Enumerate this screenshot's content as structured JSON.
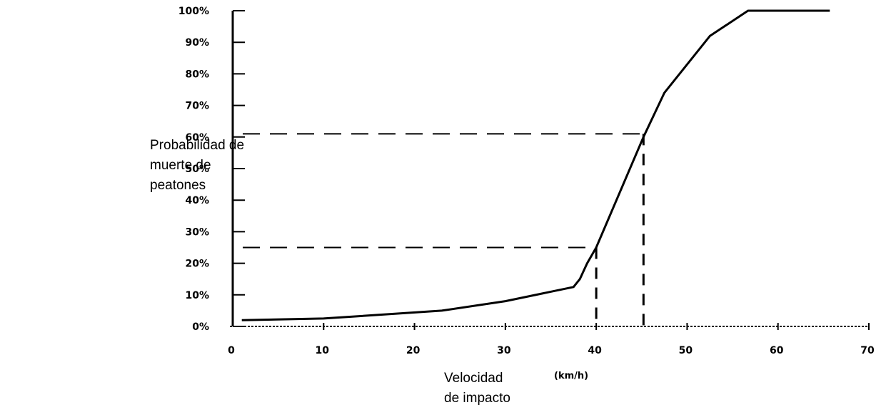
{
  "chart_data": {
    "type": "line",
    "ylabel_lines": [
      "Probabilidad de",
      "muerte de",
      "peatones"
    ],
    "xlabel_lines": [
      "Velocidad",
      "de impacto"
    ],
    "x_unit": "(km/h)",
    "xlim": [
      0,
      70
    ],
    "ylim": [
      0,
      100
    ],
    "x_ticks": [
      0,
      10,
      20,
      30,
      40,
      50,
      60,
      70
    ],
    "x_tick_labels": [
      "0",
      "10",
      "20",
      "30",
      "40",
      "50",
      "60",
      "70"
    ],
    "y_ticks": [
      0,
      10,
      20,
      30,
      40,
      50,
      60,
      70,
      80,
      90,
      100
    ],
    "y_tick_labels": [
      "0%",
      "10%",
      "20%",
      "30%",
      "40%",
      "50%",
      "60%",
      "70%",
      "80%",
      "90%",
      "100%"
    ],
    "series": [
      {
        "x": [
          1,
          10,
          23,
          30,
          37.5,
          38.2,
          39,
          40,
          45.2,
          47.5,
          52.5,
          56.7,
          65.7
        ],
        "y": [
          2,
          2.5,
          5,
          8,
          12.5,
          15,
          20,
          25,
          60,
          74,
          92,
          100,
          100
        ],
        "color": "#000000"
      }
    ],
    "reference_lines": [
      {
        "x": 40,
        "y": 25
      },
      {
        "x": 45.2,
        "y": 61
      }
    ],
    "grid": false
  }
}
